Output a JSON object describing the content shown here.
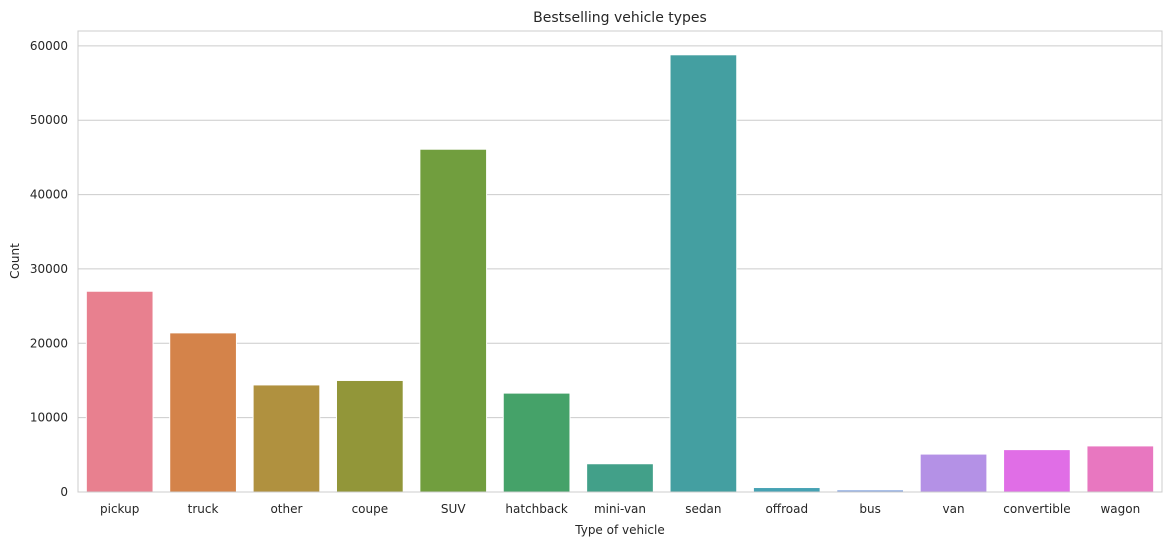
{
  "chart_data": {
    "type": "bar",
    "title": "Bestselling vehicle types",
    "xlabel": "Type of vehicle",
    "ylabel": "Count",
    "ylim": [
      0,
      62000
    ],
    "yticks": [
      0,
      10000,
      20000,
      30000,
      40000,
      50000,
      60000
    ],
    "grid": true,
    "categories": [
      "pickup",
      "truck",
      "other",
      "coupe",
      "SUV",
      "hatchback",
      "mini-van",
      "sedan",
      "offroad",
      "bus",
      "van",
      "convertible",
      "wagon"
    ],
    "values": [
      27000,
      21400,
      14400,
      15000,
      46100,
      13300,
      3800,
      58800,
      600,
      300,
      5100,
      5700,
      6200
    ],
    "colors": [
      "#e8808f",
      "#d4834a",
      "#b0913f",
      "#929639",
      "#719e3e",
      "#45a269",
      "#42a089",
      "#449fa1",
      "#46a2b3",
      "#8aa8e0",
      "#b491e6",
      "#e06ee6",
      "#e877c0"
    ]
  }
}
